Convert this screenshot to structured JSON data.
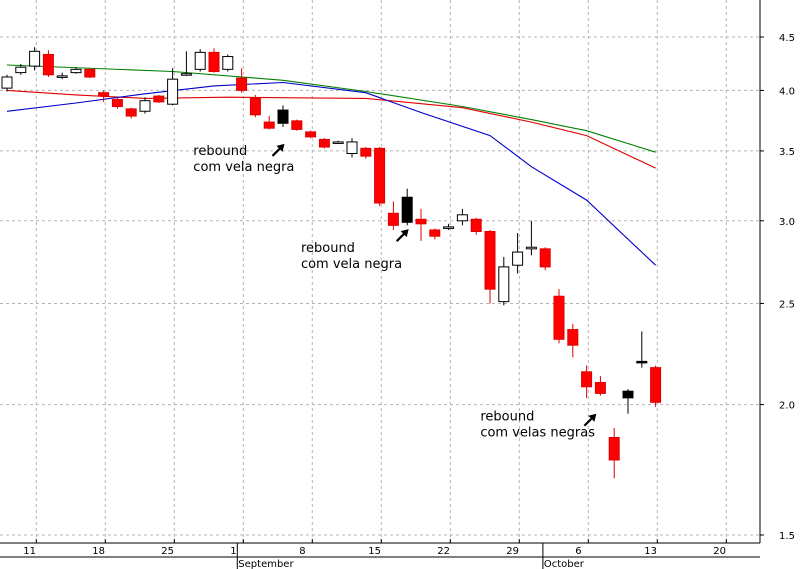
{
  "chart_data": {
    "type": "candlestick",
    "title": "",
    "xlabel": "",
    "ylabel": "",
    "y_scale": "log",
    "ylim": [
      1.5,
      4.7
    ],
    "y_ticks": [
      {
        "value": 4.5,
        "label": "4.5"
      },
      {
        "value": 4.0,
        "label": "4.0"
      },
      {
        "value": 3.5,
        "label": "3.5"
      },
      {
        "value": 3.0,
        "label": "3.0"
      },
      {
        "value": 2.5,
        "label": "2.5"
      },
      {
        "value": 2.0,
        "label": "2.0"
      },
      {
        "value": 1.5,
        "label": "1.5"
      }
    ],
    "x_ticks": [
      {
        "index": 1,
        "label": "11"
      },
      {
        "index": 6,
        "label": "18"
      },
      {
        "index": 11,
        "label": "25"
      },
      {
        "index": 16,
        "label": "1"
      },
      {
        "index": 21,
        "label": "8"
      },
      {
        "index": 26,
        "label": "15"
      },
      {
        "index": 31,
        "label": "22"
      },
      {
        "index": 36,
        "label": "29"
      },
      {
        "index": 41,
        "label": "6"
      },
      {
        "index": 46,
        "label": "13"
      },
      {
        "index": 51,
        "label": "20"
      }
    ],
    "month_labels": [
      {
        "index": 16,
        "label": "September"
      },
      {
        "index": 38,
        "label": "October"
      }
    ],
    "grid": true,
    "candles": [
      {
        "o": 4.02,
        "h": 4.14,
        "l": 3.99,
        "c": 4.12,
        "color": "white"
      },
      {
        "o": 4.16,
        "h": 4.24,
        "l": 4.14,
        "c": 4.21,
        "color": "white"
      },
      {
        "o": 4.22,
        "h": 4.4,
        "l": 4.18,
        "c": 4.36,
        "color": "white"
      },
      {
        "o": 4.33,
        "h": 4.37,
        "l": 4.12,
        "c": 4.14,
        "color": "red"
      },
      {
        "o": 4.12,
        "h": 4.16,
        "l": 4.1,
        "c": 4.13,
        "color": "white"
      },
      {
        "o": 4.16,
        "h": 4.21,
        "l": 4.15,
        "c": 4.19,
        "color": "white"
      },
      {
        "o": 4.19,
        "h": 4.2,
        "l": 4.11,
        "c": 4.12,
        "color": "red"
      },
      {
        "o": 3.98,
        "h": 4.0,
        "l": 3.9,
        "c": 3.95,
        "color": "red"
      },
      {
        "o": 3.92,
        "h": 3.94,
        "l": 3.84,
        "c": 3.86,
        "color": "red"
      },
      {
        "o": 3.84,
        "h": 3.85,
        "l": 3.76,
        "c": 3.78,
        "color": "red"
      },
      {
        "o": 3.82,
        "h": 3.94,
        "l": 3.8,
        "c": 3.91,
        "color": "white"
      },
      {
        "o": 3.95,
        "h": 3.96,
        "l": 3.89,
        "c": 3.9,
        "color": "red"
      },
      {
        "o": 3.88,
        "h": 4.2,
        "l": 3.87,
        "c": 4.1,
        "color": "white"
      },
      {
        "o": 4.14,
        "h": 4.36,
        "l": 4.13,
        "c": 4.15,
        "color": "white"
      },
      {
        "o": 4.19,
        "h": 4.38,
        "l": 4.17,
        "c": 4.35,
        "color": "white"
      },
      {
        "o": 4.35,
        "h": 4.39,
        "l": 4.16,
        "c": 4.17,
        "color": "red"
      },
      {
        "o": 4.19,
        "h": 4.33,
        "l": 4.17,
        "c": 4.31,
        "color": "white"
      },
      {
        "o": 4.11,
        "h": 4.2,
        "l": 3.98,
        "c": 4.0,
        "color": "red"
      },
      {
        "o": 3.93,
        "h": 3.96,
        "l": 3.77,
        "c": 3.79,
        "color": "red"
      },
      {
        "o": 3.73,
        "h": 3.78,
        "l": 3.67,
        "c": 3.68,
        "color": "red"
      },
      {
        "o": 3.83,
        "h": 3.87,
        "l": 3.69,
        "c": 3.72,
        "color": "black"
      },
      {
        "o": 3.74,
        "h": 3.75,
        "l": 3.66,
        "c": 3.67,
        "color": "red"
      },
      {
        "o": 3.65,
        "h": 3.66,
        "l": 3.6,
        "c": 3.61,
        "color": "red"
      },
      {
        "o": 3.59,
        "h": 3.6,
        "l": 3.52,
        "c": 3.53,
        "color": "red"
      },
      {
        "o": 3.57,
        "h": 3.58,
        "l": 3.56,
        "c": 3.57,
        "color": "white"
      },
      {
        "o": 3.48,
        "h": 3.6,
        "l": 3.45,
        "c": 3.57,
        "color": "white"
      },
      {
        "o": 3.52,
        "h": 3.53,
        "l": 3.44,
        "c": 3.46,
        "color": "red"
      },
      {
        "o": 3.52,
        "h": 3.53,
        "l": 3.1,
        "c": 3.12,
        "color": "red"
      },
      {
        "o": 3.05,
        "h": 3.13,
        "l": 2.94,
        "c": 2.97,
        "color": "red"
      },
      {
        "o": 3.16,
        "h": 3.22,
        "l": 2.97,
        "c": 2.99,
        "color": "black"
      },
      {
        "o": 3.01,
        "h": 3.08,
        "l": 2.87,
        "c": 2.98,
        "color": "red"
      },
      {
        "o": 2.94,
        "h": 2.95,
        "l": 2.88,
        "c": 2.9,
        "color": "red"
      },
      {
        "o": 2.95,
        "h": 2.98,
        "l": 2.94,
        "c": 2.96,
        "color": "white"
      },
      {
        "o": 3.0,
        "h": 3.08,
        "l": 2.97,
        "c": 3.04,
        "color": "white"
      },
      {
        "o": 3.01,
        "h": 3.02,
        "l": 2.91,
        "c": 2.93,
        "color": "red"
      },
      {
        "o": 2.93,
        "h": 2.94,
        "l": 2.5,
        "c": 2.58,
        "color": "red"
      },
      {
        "o": 2.51,
        "h": 2.77,
        "l": 2.49,
        "c": 2.71,
        "color": "white"
      },
      {
        "o": 2.72,
        "h": 2.92,
        "l": 2.67,
        "c": 2.8,
        "color": "white"
      },
      {
        "o": 2.83,
        "h": 3.0,
        "l": 2.78,
        "c": 2.82,
        "color": "white"
      },
      {
        "o": 2.82,
        "h": 2.83,
        "l": 2.69,
        "c": 2.71,
        "color": "red"
      },
      {
        "o": 2.54,
        "h": 2.58,
        "l": 2.29,
        "c": 2.31,
        "color": "red"
      },
      {
        "o": 2.36,
        "h": 2.39,
        "l": 2.22,
        "c": 2.28,
        "color": "red"
      },
      {
        "o": 2.15,
        "h": 2.18,
        "l": 2.03,
        "c": 2.08,
        "color": "red"
      },
      {
        "o": 2.1,
        "h": 2.13,
        "l": 2.04,
        "c": 2.05,
        "color": "red"
      },
      {
        "o": 1.86,
        "h": 1.9,
        "l": 1.7,
        "c": 1.77,
        "color": "red"
      },
      {
        "o": 2.06,
        "h": 2.07,
        "l": 1.96,
        "c": 2.03,
        "color": "black"
      },
      {
        "o": 2.2,
        "h": 2.35,
        "l": 2.17,
        "c": 2.2,
        "color": "black"
      },
      {
        "o": 2.17,
        "h": 2.18,
        "l": 1.99,
        "c": 2.01,
        "color": "red"
      }
    ],
    "series": [
      {
        "color": "#008000",
        "points": [
          [
            0,
            4.23
          ],
          [
            12,
            4.17
          ],
          [
            20,
            4.09
          ],
          [
            26,
            3.99
          ],
          [
            33,
            3.86
          ],
          [
            38,
            3.75
          ],
          [
            42,
            3.66
          ],
          [
            47,
            3.49
          ]
        ]
      },
      {
        "color": "#e00000",
        "points": [
          [
            0,
            4.0
          ],
          [
            5,
            3.96
          ],
          [
            10,
            3.93
          ],
          [
            16,
            3.94
          ],
          [
            26,
            3.93
          ],
          [
            33,
            3.85
          ],
          [
            38,
            3.73
          ],
          [
            42,
            3.62
          ],
          [
            47,
            3.37
          ]
        ]
      },
      {
        "color": "#0000cc",
        "points": [
          [
            0,
            3.82
          ],
          [
            5,
            3.89
          ],
          [
            10,
            3.97
          ],
          [
            15,
            4.04
          ],
          [
            20,
            4.07
          ],
          [
            26,
            3.98
          ],
          [
            30,
            3.81
          ],
          [
            35,
            3.62
          ],
          [
            38,
            3.38
          ],
          [
            42,
            3.14
          ],
          [
            47,
            2.72
          ]
        ]
      }
    ],
    "annotations": [
      {
        "lines": [
          "rebound",
          "com vela negra"
        ],
        "anchor_index": 13.5,
        "value": 3.47
      },
      {
        "lines": [
          "rebound",
          "com vela negra"
        ],
        "anchor_index": 21.3,
        "value": 2.8
      },
      {
        "lines": [
          "rebound",
          "com velas negras"
        ],
        "anchor_index": 34.3,
        "value": 1.93
      }
    ],
    "arrows": [
      {
        "index": 19.6,
        "value": 3.5
      },
      {
        "index": 28.6,
        "value": 2.9
      },
      {
        "index": 42.2,
        "value": 1.93
      }
    ]
  }
}
